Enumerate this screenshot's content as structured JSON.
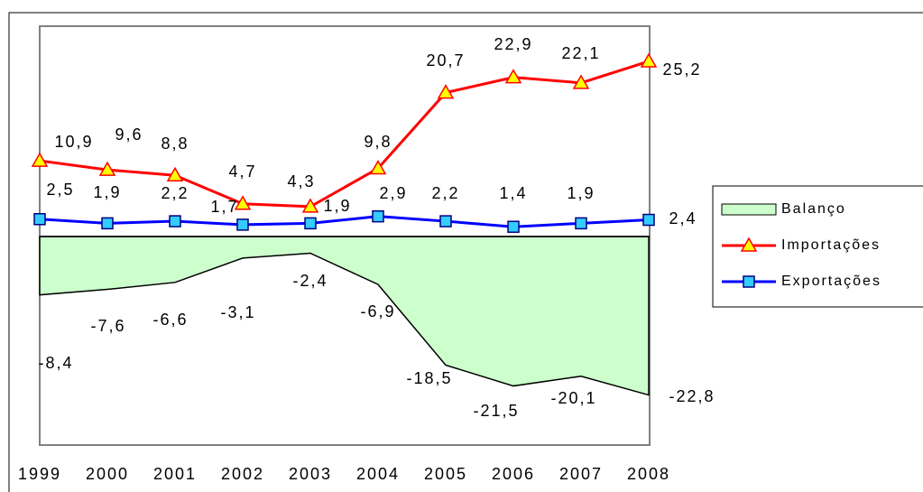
{
  "chart_data": {
    "type": "line",
    "categories": [
      "1999",
      "2000",
      "2001",
      "2002",
      "2003",
      "2004",
      "2005",
      "2006",
      "2007",
      "2008"
    ],
    "ylim": [
      -30,
      30
    ],
    "legend": "right",
    "series": [
      {
        "name": "Balanço",
        "type": "area",
        "color": "#ccffcc",
        "values": [
          -8.4,
          -7.6,
          -6.6,
          -3.1,
          -2.4,
          -6.9,
          -18.5,
          -21.5,
          -20.1,
          -22.8
        ],
        "value_labels": [
          "-8,4",
          "-7,6",
          "-6,6",
          "-3,1",
          "-2,4",
          "-6,9",
          "-18,5",
          "-21,5",
          "-20,1",
          "-22,8"
        ]
      },
      {
        "name": "Importações",
        "type": "line",
        "color": "#ff0000",
        "marker": "triangle",
        "marker_color": "#ffff00",
        "values": [
          10.9,
          9.6,
          8.8,
          4.7,
          4.3,
          9.8,
          20.7,
          22.9,
          22.1,
          25.2
        ],
        "value_labels": [
          "10,9",
          "9,6",
          "8,8",
          "4,7",
          "4,3",
          "9,8",
          "20,7",
          "22,9",
          "22,1",
          "25,2"
        ]
      },
      {
        "name": "Exportações",
        "type": "line",
        "color": "#0000ff",
        "marker": "square",
        "marker_color": "#33ccff",
        "values": [
          2.5,
          1.9,
          2.2,
          1.7,
          1.9,
          2.9,
          2.2,
          1.4,
          1.9,
          2.4
        ],
        "value_labels": [
          "2,5",
          "1,9",
          "2,2",
          "1,7",
          "1,9",
          "2,9",
          "2,2",
          "1,4",
          "1,9",
          "2,4"
        ]
      }
    ]
  }
}
